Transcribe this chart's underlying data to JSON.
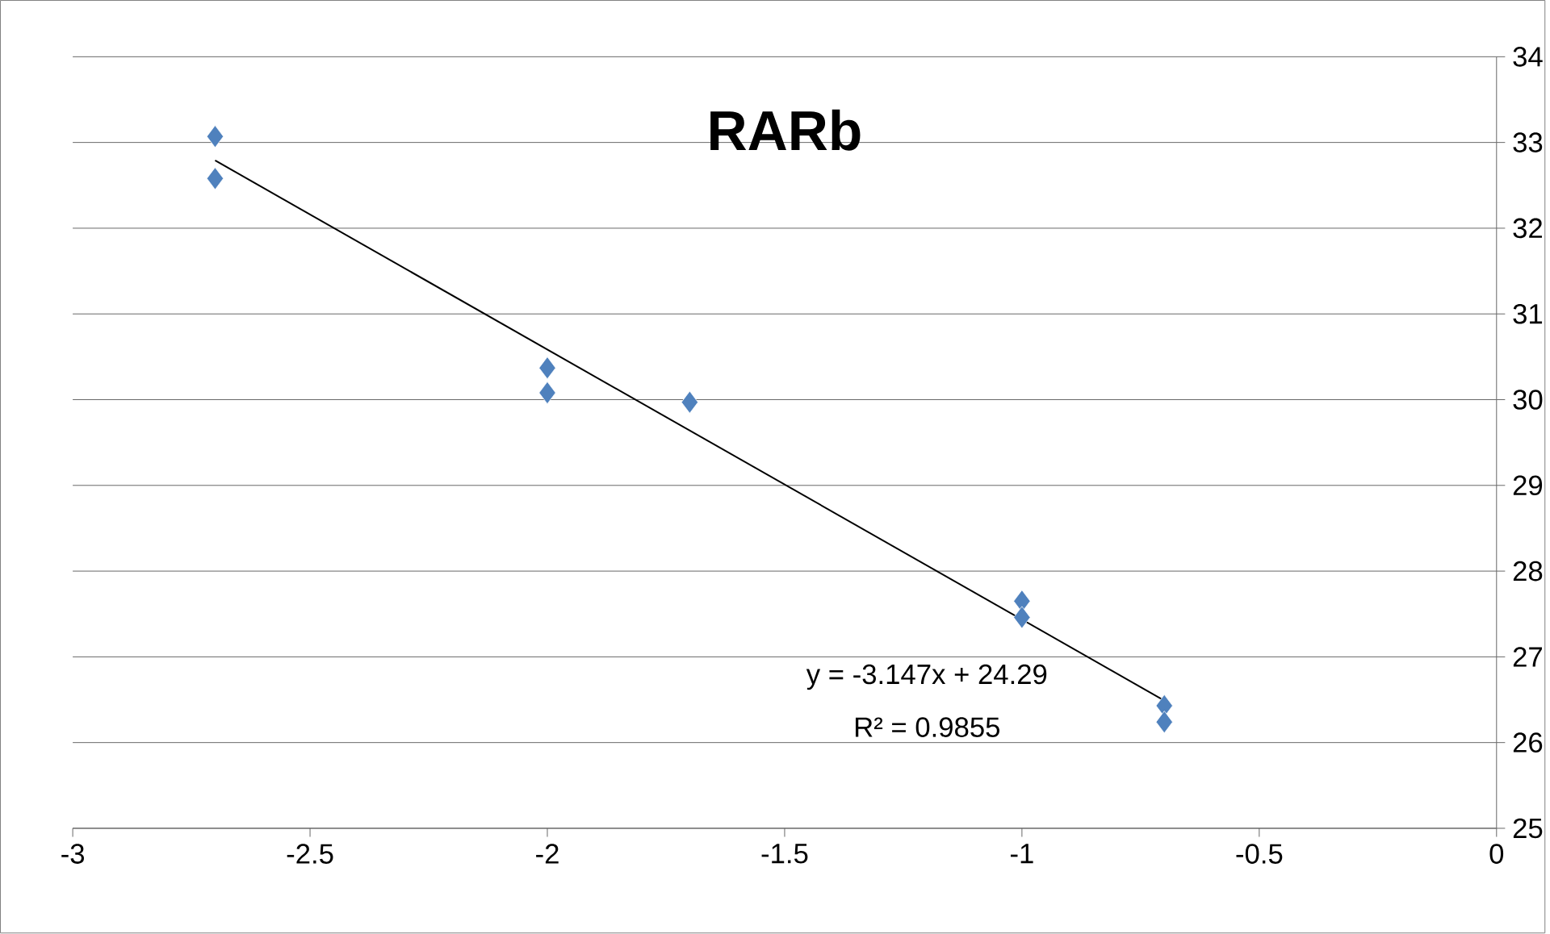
{
  "chart_data": {
    "type": "scatter",
    "title": "RARb",
    "xlim": [
      -3,
      0
    ],
    "xticks": [
      -3,
      -2.5,
      -2,
      -1.5,
      -1,
      -0.5,
      0
    ],
    "ylim": [
      25,
      34
    ],
    "yticks": [
      25,
      26,
      27,
      28,
      29,
      30,
      31,
      32,
      33,
      34
    ],
    "grid": "y",
    "series": [
      {
        "color": "#4f81bd",
        "marker": "diamond",
        "x": [
          -2.7,
          -2.7,
          -2,
          -2,
          -1.7,
          -1,
          -1,
          -0.7,
          -0.7
        ],
        "values": [
          33.07,
          32.58,
          30.37,
          30.08,
          29.97,
          27.65,
          27.46,
          26.43,
          26.24
        ]
      },
      {
        "type": "line",
        "color": "#000000",
        "marker": "none",
        "line_style": "solid",
        "x": [
          -2.7,
          -0.7
        ],
        "values": [
          32.79,
          26.49
        ]
      }
    ],
    "annotations": [
      "y = -3.147x + 24.29",
      "R² = 0.9855"
    ]
  }
}
